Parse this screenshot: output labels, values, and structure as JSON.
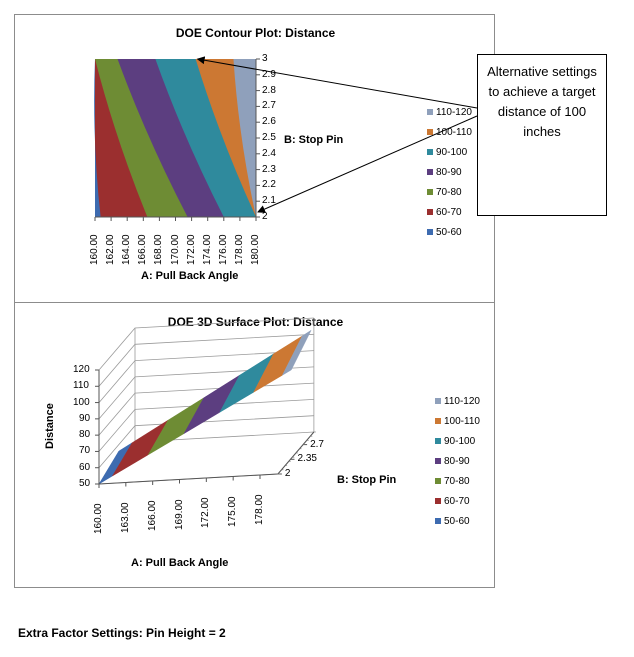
{
  "chart_data": [
    {
      "type": "contour",
      "title": "DOE Contour Plot: Distance",
      "xlabel": "A: Pull Back Angle",
      "ylabel": "B: Stop Pin",
      "x_ticks": [
        "160.00",
        "162.00",
        "164.00",
        "166.00",
        "168.00",
        "170.00",
        "172.00",
        "174.00",
        "176.00",
        "178.00",
        "180.00"
      ],
      "y_ticks": [
        "2",
        "2.1",
        "2.2",
        "2.3",
        "2.4",
        "2.5",
        "2.6",
        "2.7",
        "2.8",
        "2.9",
        "3"
      ],
      "xlim": [
        160,
        180
      ],
      "ylim": [
        2,
        3
      ],
      "legend": [
        {
          "label": "110-120",
          "color": "#8fa0bb"
        },
        {
          "label": "100-110",
          "color": "#cc7833"
        },
        {
          "label": "90-100",
          "color": "#2f8a9d"
        },
        {
          "label": "80-90",
          "color": "#5c3e80"
        },
        {
          "label": "70-80",
          "color": "#6e8c34"
        },
        {
          "label": "60-70",
          "color": "#9b2f2f"
        },
        {
          "label": "50-60",
          "color": "#3d6bb0"
        }
      ],
      "bands": [
        {
          "range": "50-60",
          "bottom_x": [
            160,
            160.7
          ],
          "top_x": [
            160,
            160
          ],
          "color": "#3d6bb0"
        },
        {
          "range": "60-70",
          "bottom_x": [
            160.7,
            166.5
          ],
          "top_x": [
            160,
            160
          ],
          "color": "#9b2f2f"
        },
        {
          "range": "70-80",
          "bottom_x": [
            166.5,
            171.5
          ],
          "top_x": [
            160,
            162.8
          ],
          "color": "#6e8c34"
        },
        {
          "range": "80-90",
          "bottom_x": [
            171.5,
            176
          ],
          "top_x": [
            162.8,
            167.5
          ],
          "color": "#5c3e80"
        },
        {
          "range": "90-100",
          "bottom_x": [
            176,
            180
          ],
          "top_x": [
            167.5,
            172.5
          ],
          "color": "#2f8a9d"
        },
        {
          "range": "100-110",
          "bottom_x": [
            180,
            180
          ],
          "top_x": [
            172.5,
            177.2
          ],
          "color": "#cc7833"
        },
        {
          "range": "110-120",
          "bottom_x": [
            180,
            180
          ],
          "top_x": [
            177.2,
            180
          ],
          "color": "#8fa0bb"
        }
      ],
      "annotation_points": [
        {
          "x": 172.5,
          "y": 3
        },
        {
          "x": 180,
          "y": 2
        }
      ]
    },
    {
      "type": "surface3d",
      "title": "DOE 3D Surface Plot: Distance",
      "xlabel": "A: Pull Back Angle",
      "ylabel": "B: Stop Pin",
      "zlabel": "Distance",
      "x_ticks": [
        "160.00",
        "163.00",
        "166.00",
        "169.00",
        "172.00",
        "175.00",
        "178.00"
      ],
      "y_ticks": [
        "2",
        "2.35",
        "2.7"
      ],
      "z_ticks": [
        "50",
        "60",
        "70",
        "80",
        "90",
        "100",
        "110",
        "120"
      ],
      "zlim": [
        50,
        120
      ],
      "legend": [
        {
          "label": "110-120",
          "color": "#8fa0bb"
        },
        {
          "label": "100-110",
          "color": "#cc7833"
        },
        {
          "label": "90-100",
          "color": "#2f8a9d"
        },
        {
          "label": "80-90",
          "color": "#5c3e80"
        },
        {
          "label": "70-80",
          "color": "#6e8c34"
        },
        {
          "label": "60-70",
          "color": "#9b2f2f"
        },
        {
          "label": "50-60",
          "color": "#3d6bb0"
        }
      ]
    }
  ],
  "annotation": {
    "text": "Alternative settings to achieve a target distance of 100 inches"
  },
  "footer": {
    "text": "Extra Factor Settings:  Pin Height = 2"
  }
}
